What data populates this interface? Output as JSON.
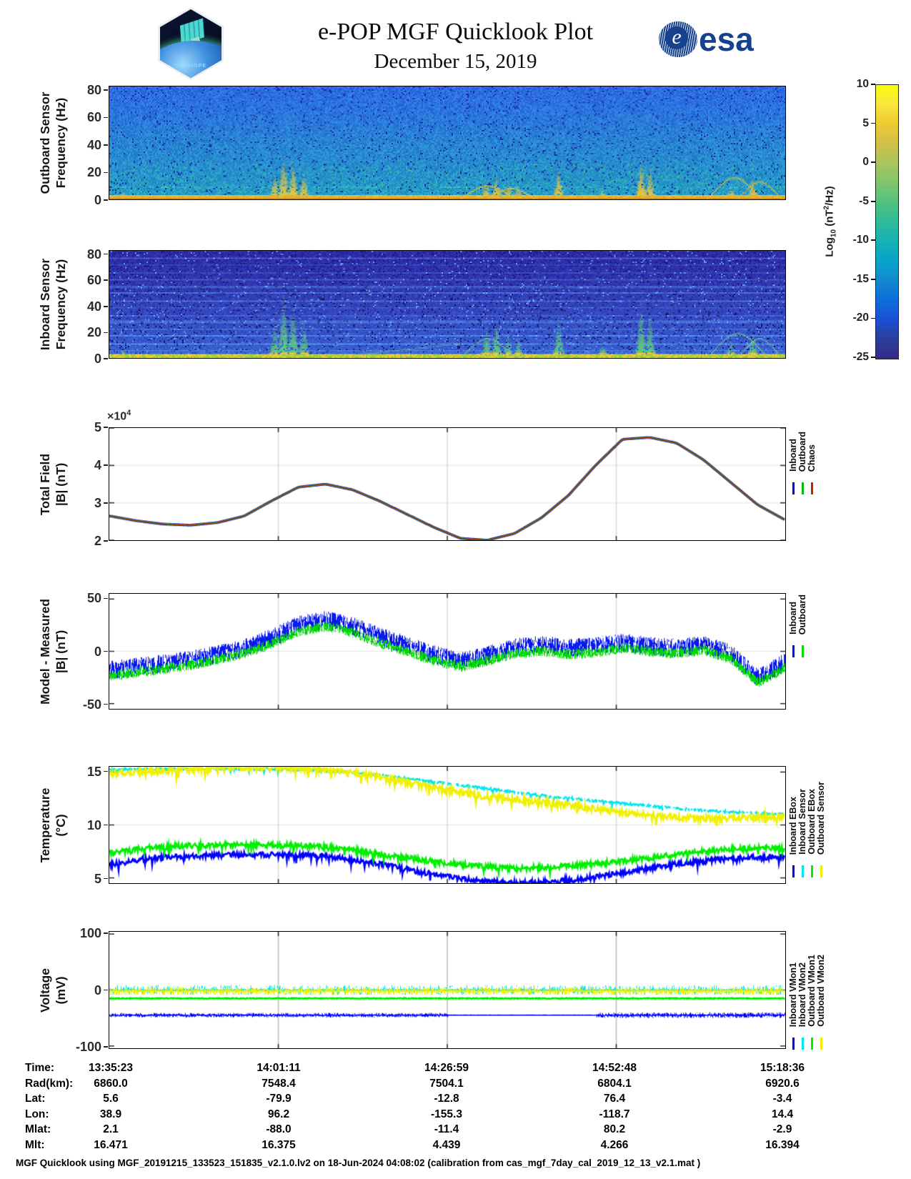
{
  "header": {
    "title": "e-POP MGF Quicklook Plot",
    "date": "December 15, 2019",
    "mission_patch_text": "CASSIOPE",
    "esa_text": "esa"
  },
  "colorbar": {
    "label_prefix": "Log",
    "label_sub": "10",
    "label_mid": " (nT",
    "label_sup": "2",
    "label_suffix": "/Hz)",
    "ticks": [
      10,
      5,
      0,
      -5,
      -10,
      -15,
      -20,
      -25
    ],
    "palette_stops_bottom_to_top": [
      "#352a87",
      "#2c3e9c",
      "#1b50d4",
      "#0c6edb",
      "#1389d0",
      "#06a4ca",
      "#16b1b3",
      "#2dbb9a",
      "#51c27f",
      "#7fc56c",
      "#aac45e",
      "#d2c04a",
      "#edc932",
      "#f9e63b",
      "#f9fb0e"
    ]
  },
  "chart_data": [
    {
      "id": "outboard-spectrogram",
      "type": "heatmap",
      "ylabel": [
        "Outboard Sensor",
        "Frequency (Hz)"
      ],
      "ylim": [
        0,
        83
      ],
      "yticks": [
        0,
        20,
        40,
        60,
        80
      ],
      "time_range": [
        "13:35:23",
        "15:18:36"
      ],
      "background_level_log10": -12,
      "baseline_band": {
        "max_hz": 3.5,
        "level_log10": 5
      },
      "events": [
        {
          "t": 0.02,
          "peak_hz": 6
        },
        {
          "t": 0.245,
          "peak_hz": 20
        },
        {
          "t": 0.258,
          "peak_hz": 35
        },
        {
          "t": 0.272,
          "peak_hz": 30
        },
        {
          "t": 0.288,
          "peak_hz": 22
        },
        {
          "t": 0.558,
          "peak_hz": 14
        },
        {
          "t": 0.573,
          "peak_hz": 18
        },
        {
          "t": 0.59,
          "peak_hz": 12
        },
        {
          "t": 0.605,
          "peak_hz": 10
        },
        {
          "t": 0.665,
          "peak_hz": 25
        },
        {
          "t": 0.73,
          "peak_hz": 8
        },
        {
          "t": 0.787,
          "peak_hz": 30
        },
        {
          "t": 0.8,
          "peak_hz": 24
        },
        {
          "t": 0.92,
          "peak_hz": 10
        },
        {
          "t": 0.952,
          "peak_hz": 16
        }
      ],
      "arcs": [
        {
          "t0": 0.52,
          "t1": 0.6,
          "peak_hz": 9
        },
        {
          "t0": 0.56,
          "t1": 0.63,
          "peak_hz": 7
        },
        {
          "t0": 0.885,
          "t1": 0.965,
          "peak_hz": 15
        },
        {
          "t0": 0.93,
          "t1": 0.995,
          "peak_hz": 12
        }
      ]
    },
    {
      "id": "inboard-spectrogram",
      "type": "heatmap",
      "ylabel": [
        "Inboard Sensor",
        "Frequency (Hz)"
      ],
      "ylim": [
        0,
        83
      ],
      "yticks": [
        0,
        20,
        40,
        60,
        80
      ],
      "time_range": [
        "13:35:23",
        "15:18:36"
      ],
      "background_level_log10": -18,
      "stripes_hz": [
        6,
        11,
        17,
        22,
        28,
        33,
        39,
        44,
        50,
        55,
        61,
        66,
        72,
        77
      ],
      "baseline_band": {
        "max_hz": 3,
        "level_log10": 3
      },
      "events": [
        {
          "t": 0.02,
          "peak_hz": 8
        },
        {
          "t": 0.245,
          "peak_hz": 30
        },
        {
          "t": 0.258,
          "peak_hz": 55
        },
        {
          "t": 0.272,
          "peak_hz": 45
        },
        {
          "t": 0.288,
          "peak_hz": 30
        },
        {
          "t": 0.558,
          "peak_hz": 25
        },
        {
          "t": 0.573,
          "peak_hz": 30
        },
        {
          "t": 0.59,
          "peak_hz": 20
        },
        {
          "t": 0.605,
          "peak_hz": 16
        },
        {
          "t": 0.665,
          "peak_hz": 35
        },
        {
          "t": 0.73,
          "peak_hz": 12
        },
        {
          "t": 0.787,
          "peak_hz": 45
        },
        {
          "t": 0.8,
          "peak_hz": 35
        },
        {
          "t": 0.92,
          "peak_hz": 15
        },
        {
          "t": 0.952,
          "peak_hz": 22
        }
      ],
      "arcs": [
        {
          "t0": 0.52,
          "t1": 0.6,
          "peak_hz": 14
        },
        {
          "t0": 0.885,
          "t1": 0.975,
          "peak_hz": 18
        },
        {
          "t0": 0.93,
          "t1": 0.995,
          "peak_hz": 14
        }
      ],
      "diagonal": {
        "t0": 0.36,
        "t1": 0.52,
        "hz0": 2,
        "hz1": 11
      }
    },
    {
      "id": "total-field",
      "type": "line",
      "ylabel": [
        "Total Field",
        "|B| (nT)"
      ],
      "scale_prefix": "×10",
      "scale_exponent": "4",
      "ylim": [
        2,
        5
      ],
      "yticks": [
        2,
        3,
        4,
        5
      ],
      "grid_y": [
        3,
        4
      ],
      "x": [
        0,
        0.04,
        0.08,
        0.12,
        0.16,
        0.2,
        0.24,
        0.28,
        0.32,
        0.36,
        0.4,
        0.44,
        0.48,
        0.52,
        0.56,
        0.6,
        0.64,
        0.68,
        0.72,
        0.76,
        0.8,
        0.84,
        0.88,
        0.92,
        0.96,
        1.0
      ],
      "y_shared_1e4": [
        2.65,
        2.52,
        2.43,
        2.4,
        2.47,
        2.65,
        3.05,
        3.42,
        3.5,
        3.35,
        3.05,
        2.7,
        2.35,
        2.05,
        2.0,
        2.18,
        2.6,
        3.2,
        4.0,
        4.7,
        4.75,
        4.6,
        4.15,
        3.55,
        2.95,
        2.55
      ],
      "note": "Inboard, Outboard and Chaos model curves overlap",
      "series": [
        {
          "name": "Inboard",
          "color": "#0000EE"
        },
        {
          "name": "Outboard",
          "color": "#00BB00"
        },
        {
          "name": "Chaos",
          "color": "#CC2200"
        }
      ]
    },
    {
      "id": "model-minus-measured",
      "type": "line",
      "ylabel": [
        "Model - Measured",
        "|B| (nT)"
      ],
      "ylim": [
        -55,
        55
      ],
      "yticks": [
        -50,
        0,
        50
      ],
      "grid_y": [
        0
      ],
      "x": [
        0,
        0.04,
        0.08,
        0.12,
        0.16,
        0.2,
        0.24,
        0.28,
        0.32,
        0.36,
        0.4,
        0.44,
        0.48,
        0.52,
        0.56,
        0.6,
        0.64,
        0.68,
        0.72,
        0.76,
        0.8,
        0.84,
        0.88,
        0.92,
        0.96,
        1.0
      ],
      "series": [
        {
          "name": "Inboard",
          "color": "#0011EE",
          "center": [
            -18,
            -15,
            -12,
            -8,
            -3,
            3,
            13,
            25,
            30,
            24,
            14,
            6,
            -3,
            -10,
            -4,
            4,
            6,
            3,
            5,
            8,
            5,
            3,
            6,
            -2,
            -26,
            -10
          ],
          "halfwidth": 9
        },
        {
          "name": "Outboard",
          "color": "#00DD00",
          "center": [
            -24,
            -20,
            -17,
            -13,
            -8,
            -2,
            7,
            19,
            24,
            18,
            8,
            0,
            -9,
            -15,
            -9,
            -2,
            0,
            -3,
            -1,
            3,
            0,
            -2,
            1,
            -7,
            -30,
            -16
          ],
          "halfwidth": 5
        }
      ]
    },
    {
      "id": "temperature",
      "type": "line",
      "ylabel": [
        "Temperature",
        "(°C)"
      ],
      "ylim": [
        4.5,
        15.5
      ],
      "yticks": [
        5,
        10,
        15
      ],
      "grid_y": [
        10
      ],
      "x": [
        0,
        0.05,
        0.1,
        0.15,
        0.2,
        0.25,
        0.3,
        0.35,
        0.4,
        0.45,
        0.5,
        0.55,
        0.6,
        0.65,
        0.7,
        0.75,
        0.8,
        0.85,
        0.9,
        0.95,
        1.0
      ],
      "series": [
        {
          "name": "Inboard EBox",
          "color": "#0000FF",
          "y": [
            6.2,
            6.8,
            7.0,
            7.1,
            7.2,
            7.2,
            7.1,
            6.8,
            6.3,
            5.7,
            5.1,
            4.7,
            4.5,
            4.6,
            4.9,
            5.4,
            5.9,
            6.4,
            6.7,
            6.9,
            7.0
          ],
          "noise": 0.25
        },
        {
          "name": "Inboard Sensor",
          "color": "#00E5EE",
          "y": [
            15.2,
            15.3,
            15.3,
            15.3,
            15.3,
            15.3,
            15.2,
            15.0,
            14.7,
            14.3,
            13.9,
            13.5,
            13.1,
            12.7,
            12.4,
            12.1,
            11.8,
            11.5,
            11.3,
            11.1,
            11.0
          ],
          "noise": 0.12
        },
        {
          "name": "Outboard EBox",
          "color": "#00EE00",
          "y": [
            7.3,
            7.8,
            8.0,
            8.1,
            8.1,
            8.1,
            8.0,
            7.7,
            7.2,
            6.8,
            6.4,
            6.1,
            5.9,
            6.0,
            6.2,
            6.5,
            6.9,
            7.3,
            7.6,
            7.8,
            7.8
          ],
          "noise": 0.25
        },
        {
          "name": "Outboard Sensor",
          "color": "#F0F000",
          "y": [
            14.8,
            15.0,
            15.2,
            15.3,
            15.4,
            15.4,
            15.3,
            15.0,
            14.5,
            13.9,
            13.3,
            12.8,
            12.4,
            12.1,
            11.7,
            11.2,
            10.9,
            10.7,
            10.6,
            10.7,
            10.8
          ],
          "noise": 0.3
        }
      ]
    },
    {
      "id": "voltage",
      "type": "line",
      "ylabel": [
        "Voltage",
        "(mV)"
      ],
      "ylim": [
        -104,
        104
      ],
      "yticks": [
        -100,
        0,
        100
      ],
      "grid_y": [
        0
      ],
      "series": [
        {
          "name": "Inboard VMon1",
          "color": "#0000FF",
          "center": -45,
          "noise_segments": [
            [
              0,
              0.5,
              4
            ],
            [
              0.5,
              0.72,
              0.5
            ],
            [
              0.72,
              1,
              5
            ]
          ]
        },
        {
          "name": "Inboard VMon2",
          "color": "#00E5EE",
          "center": 0,
          "noise_segments": [
            [
              0,
              1,
              9
            ]
          ]
        },
        {
          "name": "Outboard VMon1",
          "color": "#00EE00",
          "center": -15,
          "noise_segments": [
            [
              0,
              1,
              2.5
            ]
          ]
        },
        {
          "name": "Outboard VMon2",
          "color": "#F0F000",
          "center": -2,
          "noise_segments": [
            [
              0,
              1,
              7
            ]
          ]
        }
      ]
    }
  ],
  "ephemeris": {
    "rows": [
      {
        "label": "Time:",
        "values": [
          "13:35:23",
          "14:01:11",
          "14:26:59",
          "14:52:48",
          "15:18:36"
        ]
      },
      {
        "label": "Rad(km):",
        "values": [
          "6860.0",
          "7548.4",
          "7504.1",
          "6804.1",
          "6920.6"
        ]
      },
      {
        "label": "Lat:",
        "values": [
          "5.6",
          "-79.9",
          "-12.8",
          "76.4",
          "-3.4"
        ]
      },
      {
        "label": "Lon:",
        "values": [
          "38.9",
          "96.2",
          "-155.3",
          "-118.7",
          "14.4"
        ]
      },
      {
        "label": "Mlat:",
        "values": [
          "2.1",
          "-88.0",
          "-11.4",
          "80.2",
          "-2.9"
        ]
      },
      {
        "label": "Mlt:",
        "values": [
          "16.471",
          "16.375",
          "4.439",
          "4.266",
          "16.394"
        ]
      }
    ]
  },
  "footer": {
    "text": "MGF Quicklook using MGF_20191215_133523_151835_v2.1.0.lv2 on 18-Jun-2024 04:08:02 (calibration from cas_mgf_7day_cal_2019_12_13_v2.1.mat )"
  }
}
